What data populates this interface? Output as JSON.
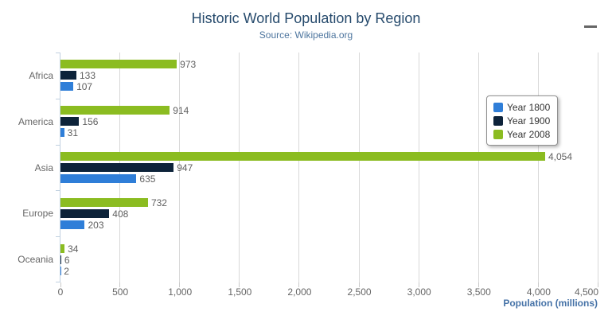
{
  "chart_data": {
    "type": "bar",
    "title": "Historic World Population by Region",
    "subtitle": "Source: Wikipedia.org",
    "categories": [
      "Africa",
      "America",
      "Asia",
      "Europe",
      "Oceania"
    ],
    "series": [
      {
        "name": "Year 1800",
        "color": "#2f7ed8",
        "values": [
          107,
          31,
          635,
          203,
          2
        ]
      },
      {
        "name": "Year 1900",
        "color": "#0d233a",
        "values": [
          133,
          156,
          947,
          408,
          6
        ]
      },
      {
        "name": "Year 2008",
        "color": "#8bbc21",
        "values": [
          973,
          914,
          4054,
          732,
          34
        ]
      }
    ],
    "bar_display_order_top_to_bottom": [
      "Year 2008",
      "Year 1900",
      "Year 1800"
    ],
    "data_labels": [
      [
        "107",
        "31",
        "635",
        "203",
        "2"
      ],
      [
        "133",
        "156",
        "947",
        "408",
        "6"
      ],
      [
        "973",
        "914",
        "4,054",
        "732",
        "34"
      ]
    ],
    "xlabel": "Population (millions)",
    "ylabel": "",
    "xlim": [
      0,
      4500
    ],
    "tick_step": 500,
    "x_ticks": [
      "0",
      "500",
      "1,000",
      "1,500",
      "2,000",
      "2,500",
      "3,000",
      "3,500",
      "4,000",
      "4,500"
    ],
    "grid": true,
    "legend_position": "right",
    "colors": {
      "title": "#274b6d",
      "subtitle": "#4d759e",
      "axis_title": "#4572a7",
      "axis_labels": "#666666",
      "data_labels": "#606060",
      "gridline": "#d8d8d8",
      "category_axis_line": "#c0d0e0",
      "menu_icon": "#666666"
    }
  },
  "header": {
    "menu_icon_name": "context-menu-hamburger"
  }
}
